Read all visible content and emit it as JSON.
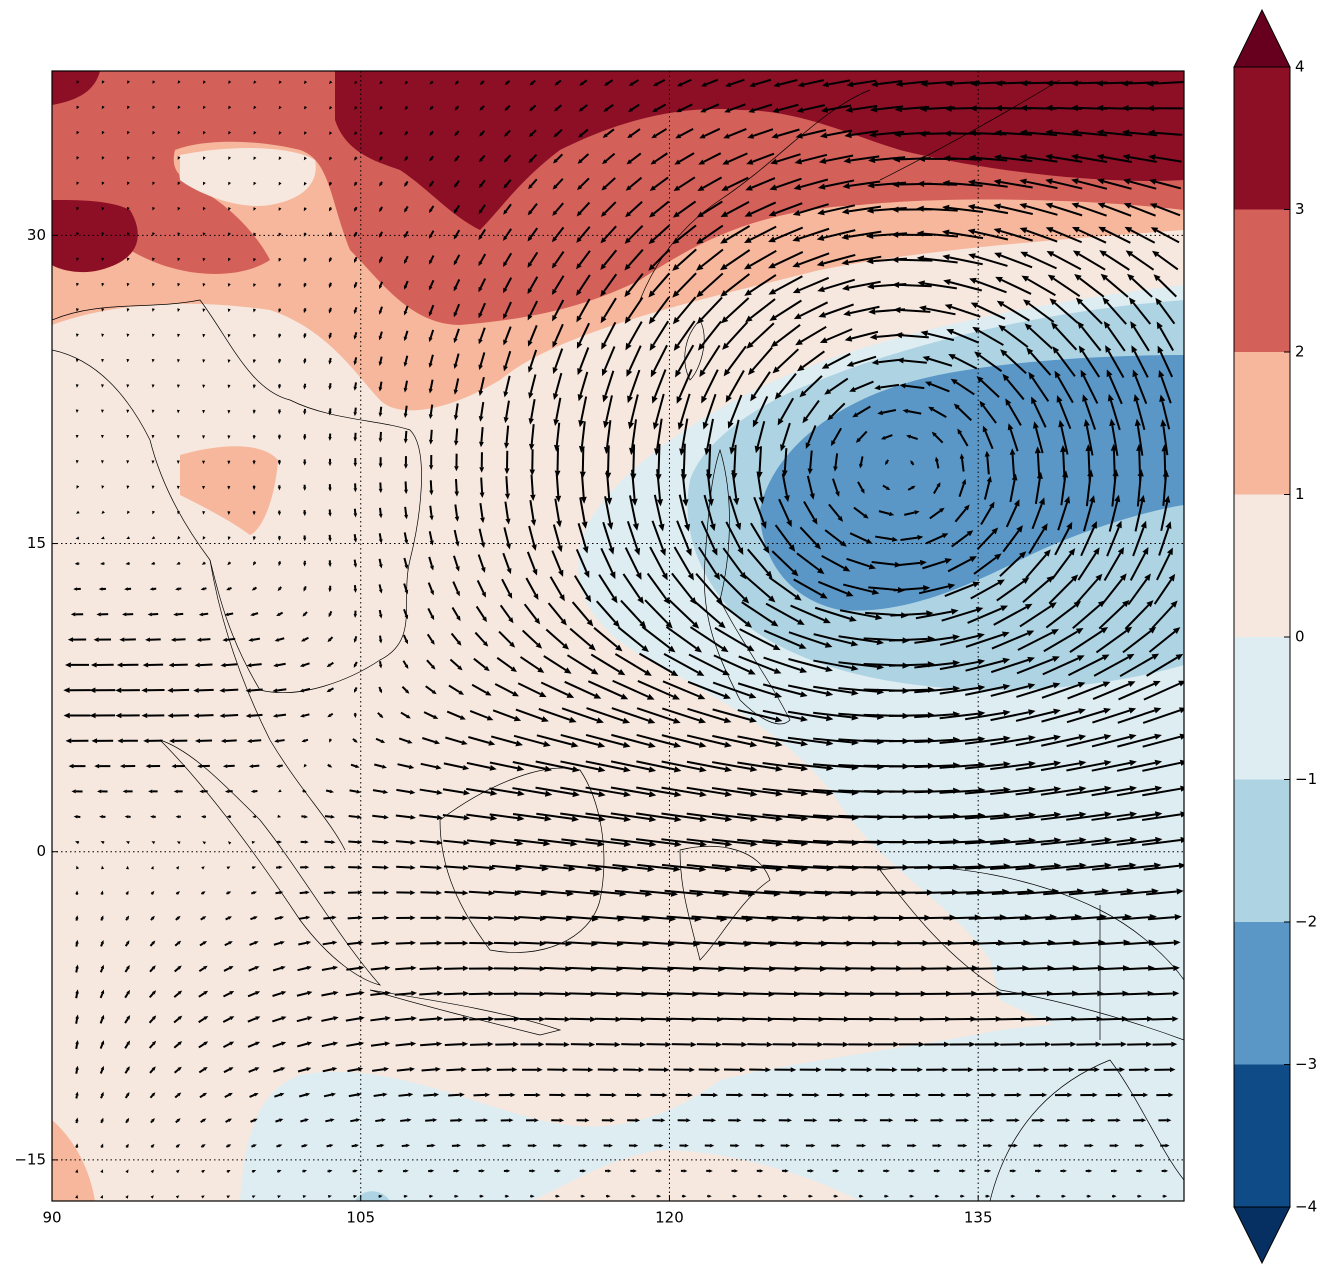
{
  "chart_data": {
    "type": "map",
    "xlim": [
      90,
      145
    ],
    "ylim": [
      -17,
      38
    ],
    "xticks": [
      90,
      105,
      120,
      135
    ],
    "yticks": [
      30,
      15,
      0,
      {
        "value": -15,
        "label": "−15"
      }
    ],
    "grid": true,
    "colorbar": {
      "lim": [
        -4,
        4
      ],
      "ticks": [
        {
          "value": -4,
          "label": "−4"
        },
        {
          "value": -3,
          "label": "−3"
        },
        {
          "value": -2,
          "label": "−2"
        },
        {
          "value": -1,
          "label": "−1"
        },
        0,
        1,
        2,
        3,
        4
      ],
      "colors": [
        "#0f4b86",
        "#5b97c6",
        "#aed4e4",
        "#deedf2",
        "#f6e8df",
        "#f7b79c",
        "#d4605a",
        "#8c0f25"
      ],
      "extend_colors": [
        "#053061",
        "#67001f"
      ]
    }
  }
}
